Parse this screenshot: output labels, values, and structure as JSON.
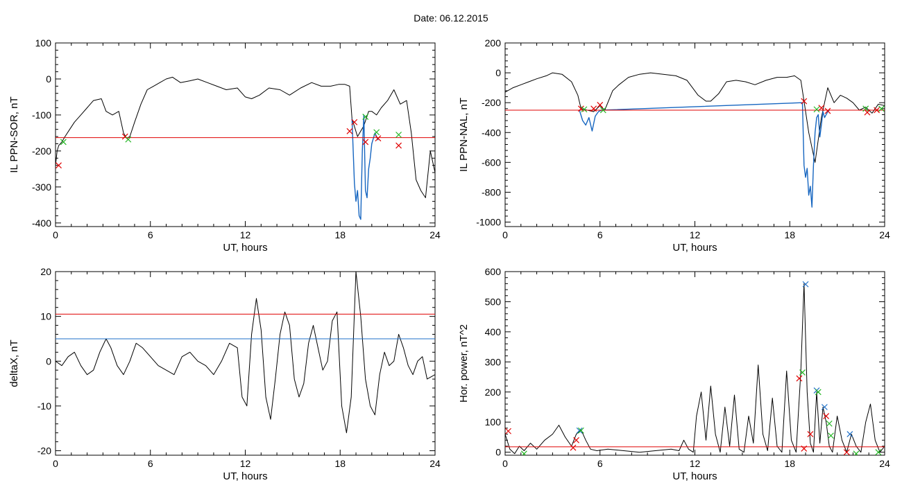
{
  "header": {
    "date_label": "Date:  06.12.2015"
  },
  "colors": {
    "trace": "#000000",
    "highlight": "#1565c0",
    "threshold_red": "#e00000",
    "threshold_blue": "#1e6fc8",
    "marker_red": "#e00000",
    "marker_green": "#1fb51f",
    "marker_blue": "#1e6fc8"
  },
  "chart_data": [
    {
      "type": "line",
      "ylabel": "IL PPN-SOR, nT",
      "xlabel": "UT, hours",
      "xlim": [
        0,
        24
      ],
      "ylim": [
        -410,
        100
      ],
      "xticks": [
        0,
        6,
        12,
        18,
        24
      ],
      "yticks": [
        100,
        0,
        -100,
        -200,
        -300,
        -400
      ],
      "thresholds": [
        {
          "y": -163,
          "color": "red"
        }
      ],
      "series": [
        {
          "color": "black",
          "x": [
            0,
            0.1,
            0.2,
            0.4,
            0.6,
            0.9,
            1.2,
            1.6,
            2.0,
            2.4,
            2.9,
            3.2,
            3.6,
            4.0,
            4.3,
            4.5,
            4.7,
            5.0,
            5.4,
            5.8,
            6.2,
            6.6,
            7.0,
            7.4,
            7.9,
            8.5,
            9.0,
            9.6,
            10.2,
            10.8,
            11.5,
            12.0,
            12.4,
            12.9,
            13.5,
            14.2,
            14.8,
            15.5,
            16.2,
            16.8,
            17.4,
            17.9,
            18.3,
            18.6,
            18.75,
            19.1,
            19.5,
            19.8,
            20.0,
            20.3,
            20.6,
            21.0,
            21.4,
            21.8,
            22.2,
            22.5,
            22.8,
            23.1,
            23.4,
            23.7,
            24
          ],
          "y": [
            -240,
            -200,
            -185,
            -175,
            -160,
            -140,
            -120,
            -100,
            -80,
            -60,
            -55,
            -90,
            -100,
            -90,
            -150,
            -165,
            -160,
            -120,
            -70,
            -30,
            -20,
            -10,
            0,
            5,
            -10,
            -5,
            0,
            -10,
            -20,
            -30,
            -25,
            -50,
            -55,
            -45,
            -25,
            -30,
            -45,
            -25,
            -10,
            -20,
            -20,
            -15,
            -15,
            -20,
            -110,
            -160,
            -130,
            -90,
            -90,
            -100,
            -80,
            -60,
            -30,
            -70,
            -60,
            -150,
            -280,
            -310,
            -330,
            -200,
            -260
          ]
        },
        {
          "color": "blue",
          "x": [
            18.75,
            18.9,
            19.0,
            19.1,
            19.2,
            19.3,
            19.4,
            19.5,
            19.6,
            19.7,
            19.8,
            19.9,
            20.0,
            20.2,
            20.4
          ],
          "y": [
            -110,
            -290,
            -340,
            -310,
            -380,
            -390,
            -200,
            -100,
            -310,
            -330,
            -250,
            -220,
            -180,
            -150,
            -170
          ]
        }
      ],
      "markers": [
        {
          "x": 4.4,
          "y": -160,
          "color": "red"
        },
        {
          "x": 4.6,
          "y": -168,
          "color": "green"
        },
        {
          "x": 0.2,
          "y": -240,
          "color": "red"
        },
        {
          "x": 0.5,
          "y": -175,
          "color": "green"
        },
        {
          "x": 18.6,
          "y": -145,
          "color": "red"
        },
        {
          "x": 18.9,
          "y": -120,
          "color": "red"
        },
        {
          "x": 19.6,
          "y": -105,
          "color": "green"
        },
        {
          "x": 19.6,
          "y": -175,
          "color": "red"
        },
        {
          "x": 20.3,
          "y": -148,
          "color": "green"
        },
        {
          "x": 20.4,
          "y": -165,
          "color": "red"
        },
        {
          "x": 21.7,
          "y": -155,
          "color": "green"
        },
        {
          "x": 21.7,
          "y": -185,
          "color": "red"
        }
      ]
    },
    {
      "type": "line",
      "ylabel": "IL PPN-NAL, nT",
      "xlabel": "UT, hours",
      "xlim": [
        0,
        24
      ],
      "ylim": [
        -1030,
        200
      ],
      "xticks": [
        0,
        6,
        12,
        18,
        24
      ],
      "yticks": [
        200,
        0,
        -200,
        -400,
        -600,
        -800,
        -1000
      ],
      "thresholds": [
        {
          "y": -250,
          "color": "red"
        }
      ],
      "series": [
        {
          "color": "black",
          "x": [
            0,
            0.5,
            1.0,
            1.5,
            2.0,
            2.6,
            3.0,
            3.6,
            4.2,
            4.6,
            4.8,
            5.2,
            5.6,
            6.0,
            6.3,
            6.8,
            7.2,
            7.8,
            8.5,
            9.2,
            10.0,
            10.8,
            11.5,
            12.2,
            12.7,
            13.0,
            13.5,
            14.0,
            14.6,
            15.2,
            15.8,
            16.5,
            17.2,
            17.8,
            18.3,
            18.7,
            18.9,
            19.2,
            19.6,
            20.0,
            20.4,
            20.8,
            21.2,
            21.6,
            22.0,
            22.4,
            22.8,
            23.2,
            23.6,
            24
          ],
          "y": [
            -130,
            -100,
            -80,
            -60,
            -40,
            -20,
            0,
            -10,
            -60,
            -150,
            -240,
            -250,
            -260,
            -220,
            -250,
            -120,
            -80,
            -30,
            -10,
            0,
            -10,
            -20,
            -50,
            -150,
            -190,
            -190,
            -140,
            -60,
            -50,
            -60,
            -80,
            -50,
            -30,
            -30,
            -20,
            -50,
            -190,
            -400,
            -600,
            -300,
            -100,
            -200,
            -150,
            -170,
            -200,
            -250,
            -230,
            -270,
            -210,
            -220
          ]
        },
        {
          "color": "blue",
          "x": [
            4.7,
            4.9,
            5.1,
            5.3,
            5.5,
            5.7,
            5.9,
            6.1,
            18.8,
            18.9,
            19.0,
            19.1,
            19.2,
            19.3,
            19.4,
            19.5,
            19.6,
            19.7,
            19.8,
            19.9,
            20.0,
            20.1,
            20.2,
            20.3,
            20.4,
            20.5
          ],
          "y": [
            -250,
            -320,
            -350,
            -300,
            -390,
            -290,
            -260,
            -250,
            -200,
            -620,
            -700,
            -640,
            -820,
            -760,
            -900,
            -620,
            -400,
            -300,
            -280,
            -430,
            -350,
            -260,
            -300,
            -280,
            -260,
            -250
          ]
        }
      ],
      "markers": [
        {
          "x": 4.8,
          "y": -240,
          "color": "red"
        },
        {
          "x": 5.0,
          "y": -245,
          "color": "green"
        },
        {
          "x": 5.6,
          "y": -240,
          "color": "red"
        },
        {
          "x": 6.0,
          "y": -215,
          "color": "red"
        },
        {
          "x": 6.2,
          "y": -250,
          "color": "green"
        },
        {
          "x": 18.9,
          "y": -190,
          "color": "red"
        },
        {
          "x": 19.7,
          "y": -245,
          "color": "green"
        },
        {
          "x": 20.0,
          "y": -235,
          "color": "red"
        },
        {
          "x": 20.4,
          "y": -255,
          "color": "red"
        },
        {
          "x": 22.8,
          "y": -240,
          "color": "green"
        },
        {
          "x": 22.9,
          "y": -265,
          "color": "red"
        },
        {
          "x": 23.5,
          "y": -250,
          "color": "red"
        },
        {
          "x": 23.8,
          "y": -240,
          "color": "green"
        }
      ]
    },
    {
      "type": "line",
      "ylabel": "deltaX, nT",
      "xlabel": "UT, hours",
      "xlim": [
        0,
        24
      ],
      "ylim": [
        -21,
        20
      ],
      "xticks": [
        0,
        6,
        12,
        18,
        24
      ],
      "yticks": [
        20,
        10,
        0,
        -10,
        -20
      ],
      "thresholds": [
        {
          "y": 10.5,
          "color": "red"
        },
        {
          "y": 5,
          "color": "blue"
        }
      ],
      "series": [
        {
          "color": "black",
          "x": [
            0,
            0.4,
            0.8,
            1.2,
            1.6,
            2.0,
            2.4,
            2.8,
            3.2,
            3.5,
            3.9,
            4.3,
            4.7,
            5.1,
            5.5,
            6.0,
            6.5,
            7.0,
            7.5,
            8.0,
            8.5,
            9.0,
            9.5,
            10.0,
            10.5,
            11.0,
            11.5,
            11.8,
            12.1,
            12.4,
            12.7,
            13.0,
            13.3,
            13.6,
            13.9,
            14.2,
            14.5,
            14.8,
            15.1,
            15.4,
            15.7,
            16.0,
            16.3,
            16.6,
            16.9,
            17.2,
            17.5,
            17.8,
            18.1,
            18.4,
            18.7,
            19.0,
            19.3,
            19.6,
            19.9,
            20.2,
            20.5,
            20.8,
            21.1,
            21.4,
            21.7,
            22.0,
            22.3,
            22.6,
            22.9,
            23.2,
            23.5,
            24
          ],
          "y": [
            0,
            -1,
            1,
            2,
            -1,
            -3,
            -2,
            2,
            5,
            3,
            -1,
            -3,
            0,
            4,
            3,
            1,
            -1,
            -2,
            -3,
            1,
            2,
            0,
            -1,
            -3,
            0,
            4,
            3,
            -8,
            -10,
            6,
            14,
            7,
            -8,
            -13,
            -4,
            6,
            11,
            8,
            -4,
            -8,
            -5,
            4,
            8,
            3,
            -2,
            0,
            9,
            11,
            -10,
            -16,
            -8,
            20,
            10,
            -4,
            -10,
            -12,
            -3,
            2,
            -1,
            0,
            6,
            3,
            -1,
            -3,
            0,
            1,
            -4,
            -3
          ]
        }
      ],
      "markers": []
    },
    {
      "type": "line",
      "ylabel": "Hor. power, nT^2",
      "xlabel": "UT, hours",
      "xlim": [
        0,
        24
      ],
      "ylim": [
        -10,
        600
      ],
      "xticks": [
        0,
        6,
        12,
        18,
        24
      ],
      "yticks": [
        600,
        500,
        400,
        300,
        200,
        100,
        0
      ],
      "thresholds": [
        {
          "y": 18,
          "color": "red"
        }
      ],
      "series": [
        {
          "color": "black",
          "x": [
            0,
            0.3,
            0.6,
            0.9,
            1.2,
            1.6,
            2.0,
            2.5,
            3.0,
            3.4,
            3.8,
            4.2,
            4.5,
            4.8,
            5.1,
            5.4,
            5.8,
            6.5,
            7.5,
            8.5,
            9.5,
            10.5,
            11.0,
            11.3,
            11.6,
            11.9,
            12.1,
            12.4,
            12.7,
            13.0,
            13.3,
            13.6,
            13.9,
            14.2,
            14.5,
            14.8,
            15.1,
            15.4,
            15.7,
            16.0,
            16.3,
            16.6,
            16.9,
            17.2,
            17.5,
            17.8,
            18.1,
            18.4,
            18.7,
            18.9,
            19.1,
            19.3,
            19.5,
            19.7,
            19.9,
            20.1,
            20.3,
            20.5,
            20.7,
            21.0,
            21.3,
            21.6,
            21.9,
            22.2,
            22.5,
            22.8,
            23.1,
            23.4,
            23.7,
            24
          ],
          "y": [
            60,
            10,
            -5,
            20,
            5,
            30,
            10,
            40,
            60,
            90,
            50,
            20,
            60,
            75,
            40,
            10,
            5,
            10,
            5,
            0,
            5,
            10,
            5,
            40,
            10,
            0,
            120,
            200,
            40,
            220,
            60,
            0,
            150,
            20,
            190,
            10,
            0,
            120,
            30,
            290,
            60,
            5,
            180,
            20,
            0,
            270,
            40,
            0,
            270,
            560,
            200,
            30,
            0,
            200,
            30,
            150,
            100,
            20,
            0,
            120,
            40,
            0,
            60,
            20,
            0,
            100,
            160,
            40,
            0,
            20
          ]
        }
      ],
      "markers": [
        {
          "x": 0.2,
          "y": 70,
          "color": "red"
        },
        {
          "x": 1.2,
          "y": -5,
          "color": "green"
        },
        {
          "x": 4.3,
          "y": 15,
          "color": "red"
        },
        {
          "x": 4.5,
          "y": 40,
          "color": "red"
        },
        {
          "x": 4.7,
          "y": 72,
          "color": "blue"
        },
        {
          "x": 4.8,
          "y": 72,
          "color": "green"
        },
        {
          "x": 18.6,
          "y": 245,
          "color": "red"
        },
        {
          "x": 18.8,
          "y": 265,
          "color": "green"
        },
        {
          "x": 19.0,
          "y": 558,
          "color": "blue"
        },
        {
          "x": 19.3,
          "y": 60,
          "color": "red"
        },
        {
          "x": 18.9,
          "y": 12,
          "color": "red"
        },
        {
          "x": 19.7,
          "y": 205,
          "color": "blue"
        },
        {
          "x": 19.8,
          "y": 200,
          "color": "green"
        },
        {
          "x": 20.2,
          "y": 150,
          "color": "blue"
        },
        {
          "x": 20.3,
          "y": 120,
          "color": "red"
        },
        {
          "x": 20.5,
          "y": 95,
          "color": "green"
        },
        {
          "x": 20.6,
          "y": 55,
          "color": "green"
        },
        {
          "x": 21.8,
          "y": 60,
          "color": "blue"
        },
        {
          "x": 21.6,
          "y": 0,
          "color": "red"
        },
        {
          "x": 22.2,
          "y": -5,
          "color": "green"
        },
        {
          "x": 23.6,
          "y": 0,
          "color": "green"
        }
      ]
    }
  ]
}
